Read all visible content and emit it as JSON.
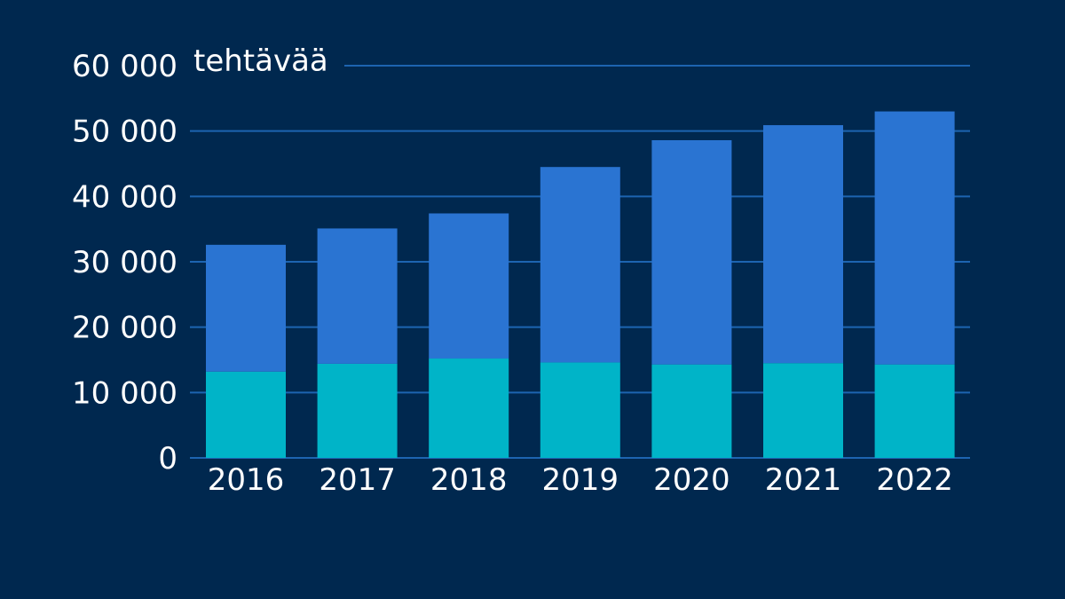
{
  "colors": {
    "background": "#00284f",
    "bottom_segment": "#00b4c8",
    "top_segment": "#2a74d2",
    "gridline": "#1d64b0",
    "text": "#ffffff"
  },
  "chart_data": {
    "type": "bar",
    "stacked": true,
    "unit_label": "tehtävää",
    "categories": [
      "2016",
      "2017",
      "2018",
      "2019",
      "2020",
      "2021",
      "2022"
    ],
    "series": [
      {
        "values": [
          13200,
          14400,
          15200,
          14600,
          14300,
          14500,
          14300
        ]
      },
      {
        "values": [
          19400,
          20700,
          22200,
          29900,
          34300,
          36400,
          38700
        ]
      }
    ],
    "totals": [
      32600,
      35100,
      37400,
      44500,
      48600,
      50900,
      53000
    ],
    "ylim": [
      0,
      60000
    ],
    "yticks": [
      {
        "value": 0,
        "label": "0"
      },
      {
        "value": 10000,
        "label": "10 000"
      },
      {
        "value": 20000,
        "label": "20 000"
      },
      {
        "value": 30000,
        "label": "30 000"
      },
      {
        "value": 40000,
        "label": "40 000"
      },
      {
        "value": 50000,
        "label": "50 000"
      },
      {
        "value": 60000,
        "label": "60 000"
      }
    ],
    "grid": true,
    "legend": "none"
  }
}
